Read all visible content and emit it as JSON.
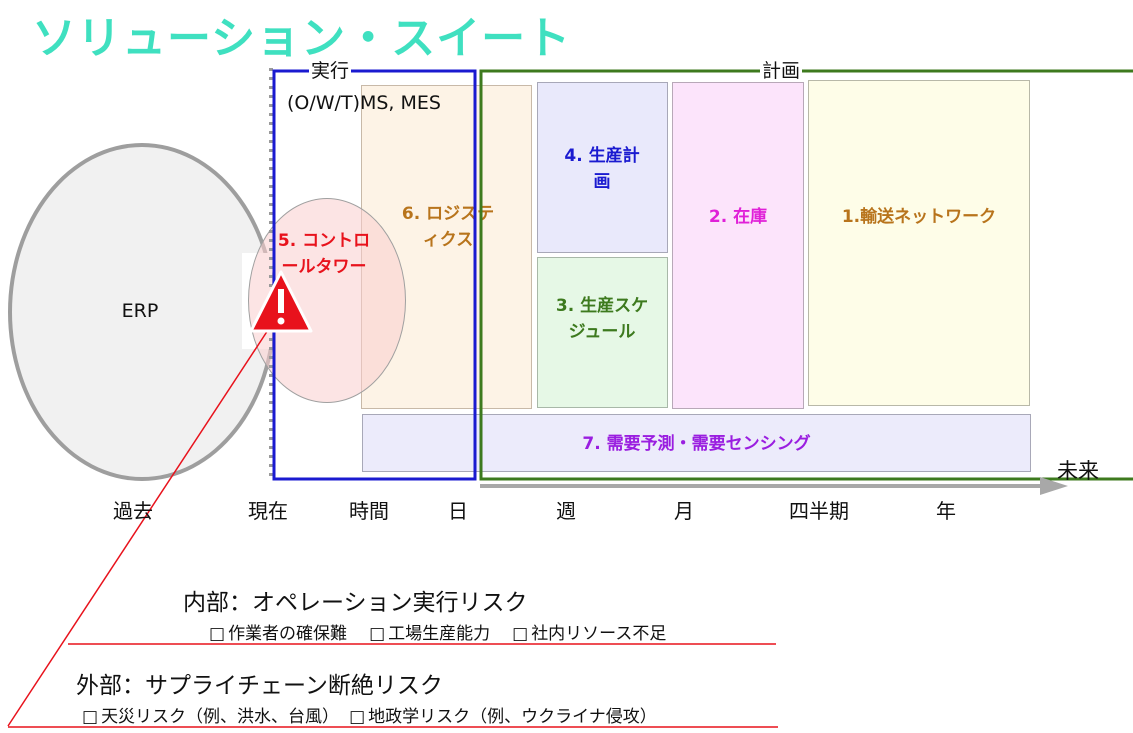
{
  "title": "ソリューション・スイート",
  "frames": {
    "execution_label": "実行",
    "planning_label": "計画"
  },
  "modules": {
    "erp": "ERP",
    "control_tower": "5. コントロールタワー",
    "logistics": "6. ロジスティクス",
    "production_planning": "4. 生産計画",
    "production_scheduling": "3. 生産スケジュール",
    "inventory": "2. 在庫",
    "transport_network": "1.輸送ネットワーク",
    "demand_forecasting": "7. 需要予測・需要センシング",
    "wms_mes": "(O/W/T)MS, MES"
  },
  "timeline": {
    "future": "未来",
    "ticks": [
      "過去",
      "現在",
      "時間",
      "日",
      "週",
      "月",
      "四半期",
      "年"
    ]
  },
  "risks": {
    "internal": {
      "heading": "内部：オペレーション実行リスク",
      "items": [
        "作業者の確保難",
        "工場生産能力",
        "社内リソース不足"
      ]
    },
    "external": {
      "heading": "外部：サプライチェーン断絶リスク",
      "items": [
        "天災リスク（例、洪水、台風）",
        "地政学リスク（例、ウクライナ侵攻）"
      ]
    }
  },
  "colors": {
    "title": "#3fe0c0",
    "execution_frame": "#1a1ad0",
    "planning_frame": "#3d7a1e",
    "control_tower": "#e8121c",
    "logistics": "#b8741c",
    "production_planning": "#1a1ad0",
    "production_scheduling": "#3d7a1e",
    "inventory": "#e020d8",
    "transport_network": "#b8741c",
    "demand_forecasting": "#9a1ee0",
    "risk_line": "#e8121c"
  },
  "icons": {
    "warning": "warning-icon"
  }
}
